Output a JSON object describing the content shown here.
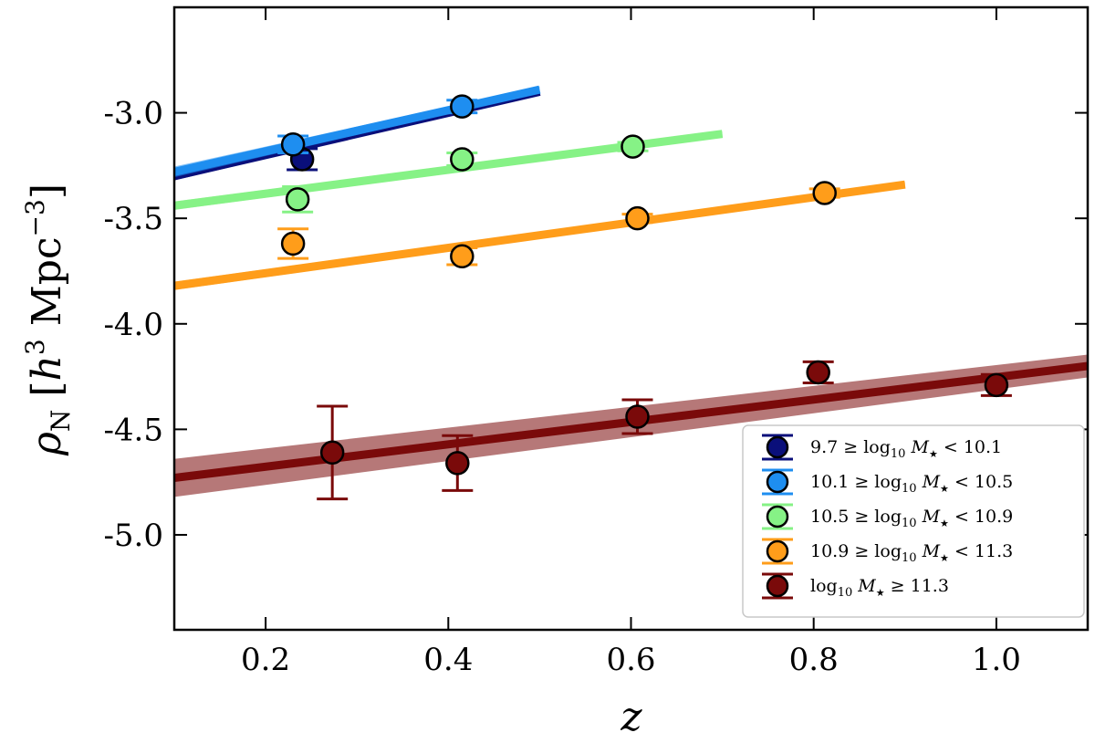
{
  "chart_data": {
    "type": "scatter",
    "xlabel": "z",
    "ylabel": {
      "symbol": "ρ",
      "subscript": "N",
      "unit_open": "[",
      "h": "h",
      "h_exp": "3",
      "mpc": "Mpc",
      "mpc_exp": "−3",
      "unit_close": "]"
    },
    "xlim": [
      0.1,
      1.1
    ],
    "ylim": [
      -5.45,
      -2.5
    ],
    "xticks": [
      0.2,
      0.4,
      0.6,
      0.8,
      1.0
    ],
    "xtick_labels": [
      "0.2",
      "0.4",
      "0.6",
      "0.8",
      "1.0"
    ],
    "yticks": [
      -3.0,
      -3.5,
      -4.0,
      -4.5,
      -5.0
    ],
    "ytick_labels": [
      "-3.0",
      "-3.5",
      "-4.0",
      "-4.5",
      "-5.0"
    ],
    "legend_position": "lower-right",
    "series": [
      {
        "name": "9.7 ≥ log10 M★ < 10.1",
        "legend_pre": "9.7 ≥ log",
        "legend_sub": "10",
        "legend_post": " M",
        "legend_star": "★",
        "legend_tail": " < 10.1",
        "color": "#0a0f7a",
        "points": [
          {
            "x": 0.24,
            "y": -3.22,
            "err": 0.05
          }
        ],
        "fit": {
          "x0": 0.1,
          "y0": -3.3,
          "x1": 0.5,
          "y1": -2.9,
          "band": 0.02
        }
      },
      {
        "name": "10.1 ≥ log10 M★ < 10.5",
        "legend_pre": "10.1 ≥ log",
        "legend_sub": "10",
        "legend_post": " M",
        "legend_star": "★",
        "legend_tail": " < 10.5",
        "color": "#1e8ef0",
        "points": [
          {
            "x": 0.23,
            "y": -3.15,
            "err": 0.04
          },
          {
            "x": 0.415,
            "y": -2.97,
            "err": 0.03
          }
        ],
        "fit": {
          "x0": 0.1,
          "y0": -3.28,
          "x1": 0.5,
          "y1": -2.89,
          "band": 0.025
        }
      },
      {
        "name": "10.5 ≥ log10 M★ < 10.9",
        "legend_pre": "10.5 ≥ log",
        "legend_sub": "10",
        "legend_post": " M",
        "legend_star": "★",
        "legend_tail": " < 10.9",
        "color": "#86f286",
        "points": [
          {
            "x": 0.235,
            "y": -3.41,
            "err": 0.06
          },
          {
            "x": 0.415,
            "y": -3.22,
            "err": 0.03
          },
          {
            "x": 0.602,
            "y": -3.16,
            "err": 0.02
          }
        ],
        "fit": {
          "x0": 0.1,
          "y0": -3.44,
          "x1": 0.7,
          "y1": -3.1,
          "band": 0.02
        }
      },
      {
        "name": "10.9 ≥ log10 M★ < 11.3",
        "legend_pre": "10.9 ≥ log",
        "legend_sub": "10",
        "legend_post": " M",
        "legend_star": "★",
        "legend_tail": " < 11.3",
        "color": "#ff9d1a",
        "points": [
          {
            "x": 0.23,
            "y": -3.62,
            "err": 0.07
          },
          {
            "x": 0.415,
            "y": -3.68,
            "err": 0.04
          },
          {
            "x": 0.607,
            "y": -3.5,
            "err": 0.02
          },
          {
            "x": 0.812,
            "y": -3.38,
            "err": 0.02
          }
        ],
        "fit": {
          "x0": 0.1,
          "y0": -3.82,
          "x1": 0.9,
          "y1": -3.34,
          "band": 0.02
        }
      },
      {
        "name": "log10 M★ ≥ 11.3",
        "legend_pre": "log",
        "legend_sub": "10",
        "legend_post": " M",
        "legend_star": "★",
        "legend_tail": " ≥ 11.3",
        "color": "#7a0a0a",
        "points": [
          {
            "x": 0.273,
            "y": -4.61,
            "err": 0.22
          },
          {
            "x": 0.41,
            "y": -4.66,
            "err": 0.13
          },
          {
            "x": 0.607,
            "y": -4.44,
            "err": 0.08
          },
          {
            "x": 0.805,
            "y": -4.23,
            "err": 0.05
          },
          {
            "x": 1.0,
            "y": -4.29,
            "err": 0.05
          }
        ],
        "fit": {
          "x0": 0.1,
          "y0": -4.73,
          "x1": 1.1,
          "y1": -4.2,
          "band": 0.09
        }
      }
    ]
  }
}
